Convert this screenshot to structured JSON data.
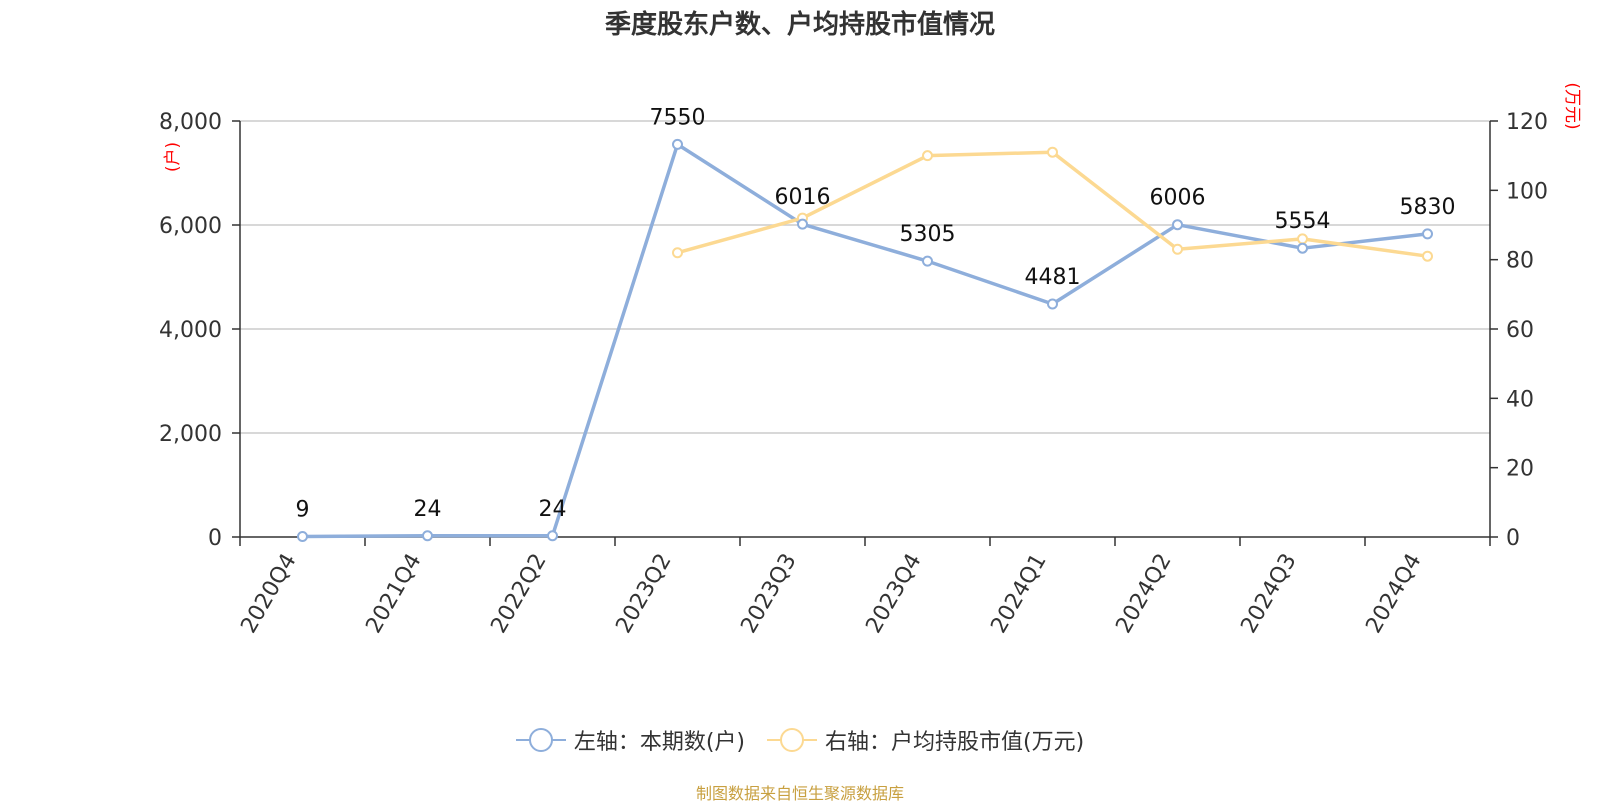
{
  "title": "季度股东户数、户均持股市值情况",
  "source": "制图数据来自恒生聚源数据库",
  "chart_data": {
    "type": "line",
    "title": "季度股东户数、户均持股市值情况",
    "categories": [
      "2020Q4",
      "2021Q4",
      "2022Q2",
      "2023Q2",
      "2023Q3",
      "2023Q4",
      "2024Q1",
      "2024Q2",
      "2024Q3",
      "2024Q4"
    ],
    "left_axis": {
      "unit": "(户)",
      "ylim": [
        0,
        8000
      ],
      "ticks": [
        0,
        2000,
        4000,
        6000,
        8000
      ],
      "tick_labels": [
        "0",
        "2,000",
        "4,000",
        "6,000",
        "8,000"
      ]
    },
    "right_axis": {
      "unit": "(万元)",
      "ylim": [
        0,
        120
      ],
      "ticks": [
        0,
        20,
        40,
        60,
        80,
        100,
        120
      ],
      "tick_labels": [
        "0",
        "20",
        "40",
        "60",
        "80",
        "100",
        "120"
      ]
    },
    "grid": true,
    "legend_position": "bottom",
    "series": [
      {
        "name": "左轴：本期数(户)",
        "axis": "left",
        "color": "#8eaedb",
        "values": [
          9,
          24,
          24,
          7550,
          6016,
          5305,
          4481,
          6006,
          5554,
          5830
        ],
        "labels": [
          "9",
          "24",
          "24",
          "7550",
          "6016",
          "5305",
          "4481",
          "6006",
          "5554",
          "5830"
        ]
      },
      {
        "name": "右轴：户均持股市值(万元)",
        "axis": "right",
        "color": "#fcd992",
        "values": [
          null,
          null,
          null,
          82,
          92,
          110,
          111,
          83,
          86,
          81
        ]
      }
    ]
  }
}
